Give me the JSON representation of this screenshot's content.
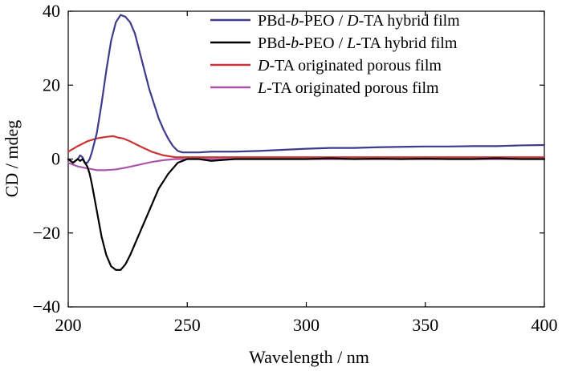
{
  "chart_data": {
    "type": "line",
    "xlabel": "Wavelength / nm",
    "ylabel": "CD / mdeg",
    "xlim": [
      200,
      400
    ],
    "ylim": [
      -40,
      40
    ],
    "xticks": [
      200,
      250,
      300,
      350,
      400
    ],
    "yticks": [
      -40,
      -20,
      0,
      20,
      40
    ],
    "xtick_labels": [
      "200",
      "250",
      "300",
      "350",
      "400"
    ],
    "ytick_labels": [
      "−40",
      "−20",
      "0",
      "20",
      "40"
    ],
    "grid": false,
    "legend_position": "top-right",
    "series": [
      {
        "name": "PBd-b-PEO / D-TA hybrid film",
        "legend_parts": [
          {
            "text": "PBd-",
            "italic": false
          },
          {
            "text": "b",
            "italic": true
          },
          {
            "text": "-PEO / ",
            "italic": false
          },
          {
            "text": "D",
            "italic": true
          },
          {
            "text": "-TA hybrid film",
            "italic": false
          }
        ],
        "color": "#3c3c8c",
        "x": [
          200,
          202,
          204,
          205,
          206,
          207,
          208,
          209,
          210,
          212,
          214,
          216,
          218,
          220,
          222,
          224,
          226,
          228,
          230,
          232,
          234,
          236,
          238,
          240,
          242,
          244,
          246,
          248,
          250,
          255,
          260,
          270,
          280,
          290,
          300,
          310,
          320,
          330,
          340,
          350,
          360,
          370,
          380,
          390,
          400
        ],
        "y": [
          0,
          -1,
          0,
          1,
          0.5,
          -1,
          -1,
          0,
          2,
          7,
          15,
          24,
          32,
          37,
          39,
          38.5,
          37,
          34,
          29,
          24,
          19,
          15,
          11,
          8,
          5.5,
          3.5,
          2.2,
          1.8,
          1.8,
          1.8,
          2,
          2,
          2.2,
          2.5,
          2.8,
          3,
          3,
          3.2,
          3.3,
          3.4,
          3.4,
          3.5,
          3.5,
          3.7,
          3.8
        ]
      },
      {
        "name": "PBd-b-PEO / L-TA hybrid film",
        "legend_parts": [
          {
            "text": "PBd-",
            "italic": false
          },
          {
            "text": "b",
            "italic": true
          },
          {
            "text": "-PEO / ",
            "italic": false
          },
          {
            "text": "L",
            "italic": true
          },
          {
            "text": "-TA hybrid film",
            "italic": false
          }
        ],
        "color": "#000000",
        "x": [
          200,
          202,
          204,
          205,
          206,
          207,
          208,
          209,
          210,
          212,
          214,
          216,
          218,
          220,
          222,
          224,
          226,
          228,
          230,
          232,
          234,
          236,
          238,
          240,
          242,
          244,
          246,
          248,
          250,
          255,
          260,
          270,
          280,
          290,
          300,
          310,
          320,
          330,
          340,
          350,
          360,
          370,
          380,
          390,
          400
        ],
        "y": [
          0,
          -1,
          0,
          -0.5,
          0,
          -1,
          -2,
          -4,
          -7,
          -14,
          -21,
          -26,
          -29,
          -30,
          -30,
          -28.5,
          -26,
          -23,
          -20,
          -17,
          -14,
          -11,
          -8,
          -6,
          -4,
          -2.5,
          -1,
          -0.5,
          0,
          0,
          -0.5,
          0,
          0,
          0,
          0,
          0.2,
          0,
          0.1,
          0,
          0.1,
          0,
          0,
          0.2,
          0,
          0
        ]
      },
      {
        "name": "D-TA originated porous film",
        "legend_parts": [
          {
            "text": "D",
            "italic": true
          },
          {
            "text": "-TA originated porous film",
            "italic": false
          }
        ],
        "color": "#cc3333",
        "x": [
          200,
          204,
          208,
          212,
          216,
          219,
          221,
          223,
          226,
          230,
          235,
          240,
          245,
          250,
          260,
          280,
          300,
          320,
          340,
          360,
          380,
          400
        ],
        "y": [
          2,
          3.5,
          4.8,
          5.6,
          6,
          6.2,
          5.8,
          5.6,
          4.8,
          3.5,
          2,
          1,
          0.5,
          0.5,
          0.5,
          0.5,
          0.5,
          0.5,
          0.5,
          0.5,
          0.5,
          0.5
        ]
      },
      {
        "name": "L-TA originated porous film",
        "legend_parts": [
          {
            "text": "L",
            "italic": true
          },
          {
            "text": "-TA originated porous film",
            "italic": false
          }
        ],
        "color": "#aa55aa",
        "x": [
          200,
          204,
          208,
          212,
          216,
          220,
          225,
          230,
          235,
          240,
          245,
          250,
          260,
          280,
          300,
          320,
          340,
          360,
          380,
          400
        ],
        "y": [
          -1,
          -2,
          -2.5,
          -3,
          -3,
          -2.8,
          -2.2,
          -1.5,
          -0.8,
          -0.3,
          0,
          0,
          0,
          0,
          0,
          0,
          0,
          0,
          0,
          0
        ]
      }
    ]
  }
}
